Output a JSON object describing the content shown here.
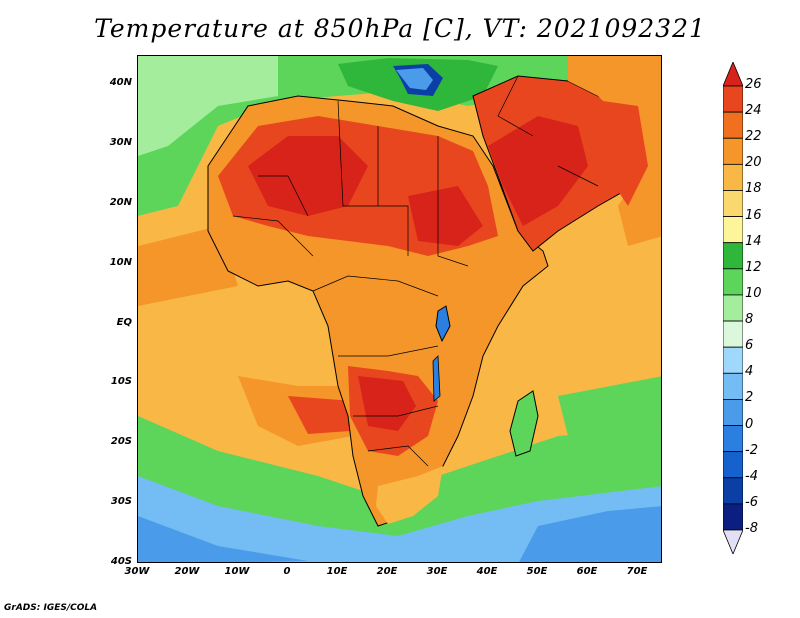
{
  "title": "Temperature at 850hPa [C], VT: 2021092321",
  "footer": "GrADS: IGES/COLA",
  "y_axis_labels": [
    "40N",
    "30N",
    "20N",
    "10N",
    "EQ",
    "10S",
    "20S",
    "30S",
    "40S"
  ],
  "x_axis_labels": [
    "30W",
    "20W",
    "10W",
    "0",
    "10E",
    "20E",
    "30E",
    "40E",
    "50E",
    "60E",
    "70E"
  ],
  "colorbar": {
    "labels": [
      "26",
      "24",
      "22",
      "20",
      "18",
      "16",
      "14",
      "12",
      "10",
      "8",
      "6",
      "4",
      "2",
      "0",
      "-2",
      "-4",
      "-6",
      "-8"
    ],
    "colors": [
      "#d8231a",
      "#e8461e",
      "#f0701f",
      "#f5962a",
      "#f9b846",
      "#fbd770",
      "#fcf59a",
      "#2eb73a",
      "#5cd55a",
      "#a4ed9c",
      "#dbf8dc",
      "#9fd8fb",
      "#73bdf4",
      "#4a9ceb",
      "#2a7fe0",
      "#1562cf",
      "#0c3fa6",
      "#0a1f80",
      "#e3e0f5"
    ]
  },
  "map": {
    "colors": {
      "ocean_cold": "#4a9ceb",
      "ocean_cool": "#73bdf4",
      "ocean_green": "#5cd55a",
      "ocean_warm": "#f9b846",
      "land_warm": "#f5962a",
      "land_hot": "#e8461e",
      "land_hottest": "#d8231a",
      "med": "#2eb73a",
      "cold_patch": "#0c3fa6",
      "boundary": "#000000"
    }
  }
}
